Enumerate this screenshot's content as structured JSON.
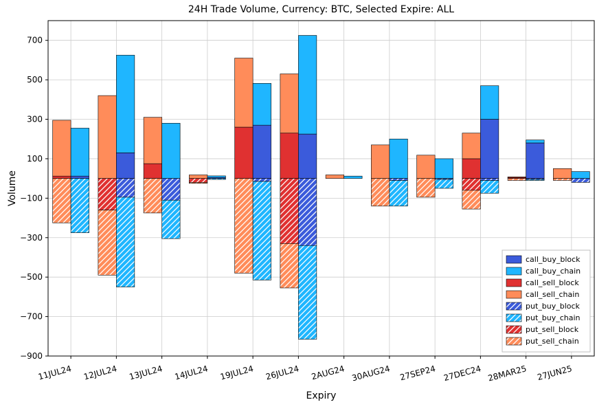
{
  "chart": {
    "type": "stacked_grouped_bar",
    "title": "24H Trade Volume, Currency: BTC, Selected Expire: ALL",
    "title_fontsize": 14,
    "xlabel": "Expiry",
    "ylabel": "Volume",
    "label_fontsize": 14,
    "tick_fontsize": 12,
    "background_color": "#ffffff",
    "grid_color": "#cccccc",
    "categories": [
      "11JUL24",
      "12JUL24",
      "13JUL24",
      "14JUL24",
      "19JUL24",
      "26JUL24",
      "2AUG24",
      "30AUG24",
      "27SEP24",
      "27DEC24",
      "28MAR25",
      "27JUN25"
    ],
    "ylim": [
      -900,
      800
    ],
    "ytick_step": 200,
    "bar_group_width": 0.8,
    "bar_sub_width": 0.4,
    "series_colors": {
      "call_buy_block": "#3b5bdb",
      "call_buy_chain": "#1fb6ff",
      "call_sell_block": "#e03131",
      "call_sell_chain": "#ff8c5a",
      "put_buy_block": "#3b5bdb",
      "put_buy_chain": "#1fb6ff",
      "put_sell_block": "#e03131",
      "put_sell_chain": "#ff8c5a"
    },
    "hatched_series": [
      "put_buy_block",
      "put_buy_chain",
      "put_sell_block",
      "put_sell_chain"
    ],
    "legend": {
      "position": "lower_right",
      "items": [
        "call_buy_block",
        "call_buy_chain",
        "call_sell_block",
        "call_sell_chain",
        "put_buy_block",
        "put_buy_chain",
        "put_sell_block",
        "put_sell_chain"
      ]
    },
    "left_bar_stacks": {
      "positive": [
        "call_sell_block",
        "call_sell_chain"
      ],
      "negative": [
        "put_sell_block",
        "put_sell_chain"
      ]
    },
    "right_bar_stacks": {
      "positive": [
        "call_buy_block",
        "call_buy_chain"
      ],
      "negative": [
        "put_buy_block",
        "put_buy_chain"
      ]
    },
    "data": {
      "call_sell_block": [
        12,
        0,
        75,
        0,
        260,
        230,
        0,
        0,
        0,
        100,
        5,
        0
      ],
      "call_sell_chain": [
        283,
        420,
        235,
        18,
        350,
        300,
        18,
        170,
        118,
        130,
        3,
        50
      ],
      "put_sell_block": [
        0,
        160,
        0,
        20,
        0,
        330,
        0,
        0,
        0,
        60,
        0,
        0
      ],
      "put_sell_chain": [
        225,
        330,
        175,
        5,
        480,
        225,
        0,
        140,
        95,
        95,
        10,
        10
      ],
      "call_buy_block": [
        12,
        130,
        0,
        5,
        270,
        225,
        0,
        0,
        0,
        300,
        180,
        0
      ],
      "call_buy_chain": [
        243,
        495,
        280,
        8,
        212,
        500,
        12,
        200,
        100,
        170,
        15,
        35
      ],
      "put_buy_block": [
        0,
        95,
        110,
        0,
        15,
        340,
        0,
        10,
        5,
        10,
        5,
        20
      ],
      "put_buy_chain": [
        275,
        455,
        195,
        5,
        500,
        475,
        0,
        130,
        45,
        65,
        5,
        0
      ]
    }
  }
}
